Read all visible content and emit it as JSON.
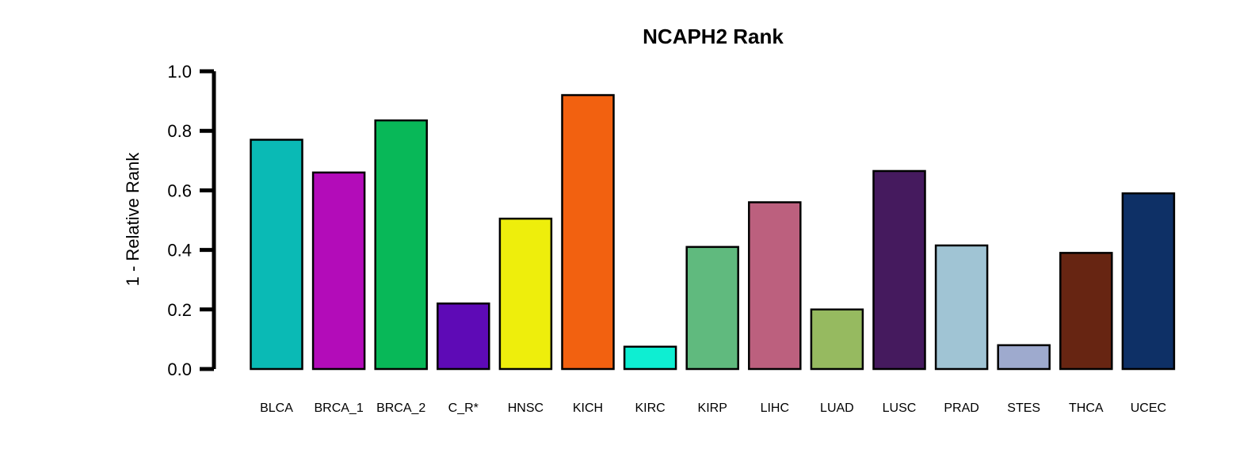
{
  "chart_data": {
    "type": "bar",
    "title": "NCAPH2 Rank",
    "xlabel": "",
    "ylabel": "1 - Relative Rank",
    "ylim": [
      0,
      1
    ],
    "yticks": [
      "0.0",
      "0.2",
      "0.4",
      "0.6",
      "0.8",
      "1.0"
    ],
    "grid": false,
    "legend": "none",
    "categories": [
      "BLCA",
      "BRCA_1",
      "BRCA_2",
      "C_R*",
      "HNSC",
      "KICH",
      "KIRC",
      "KIRP",
      "LIHC",
      "LUAD",
      "LUSC",
      "PRAD",
      "STES",
      "THCA",
      "UCEC"
    ],
    "values": [
      0.77,
      0.66,
      0.835,
      0.22,
      0.505,
      0.92,
      0.075,
      0.41,
      0.56,
      0.2,
      0.665,
      0.415,
      0.08,
      0.39,
      0.59
    ],
    "colors": [
      "#0ABAB5",
      "#B30CB9",
      "#08B858",
      "#5E0AB6",
      "#EEEE0C",
      "#F26110",
      "#0EEED2",
      "#60BA7E",
      "#BC607E",
      "#96BA60",
      "#451A5E",
      "#A0C4D4",
      "#9EAACE",
      "#672512",
      "#0E3066"
    ]
  }
}
